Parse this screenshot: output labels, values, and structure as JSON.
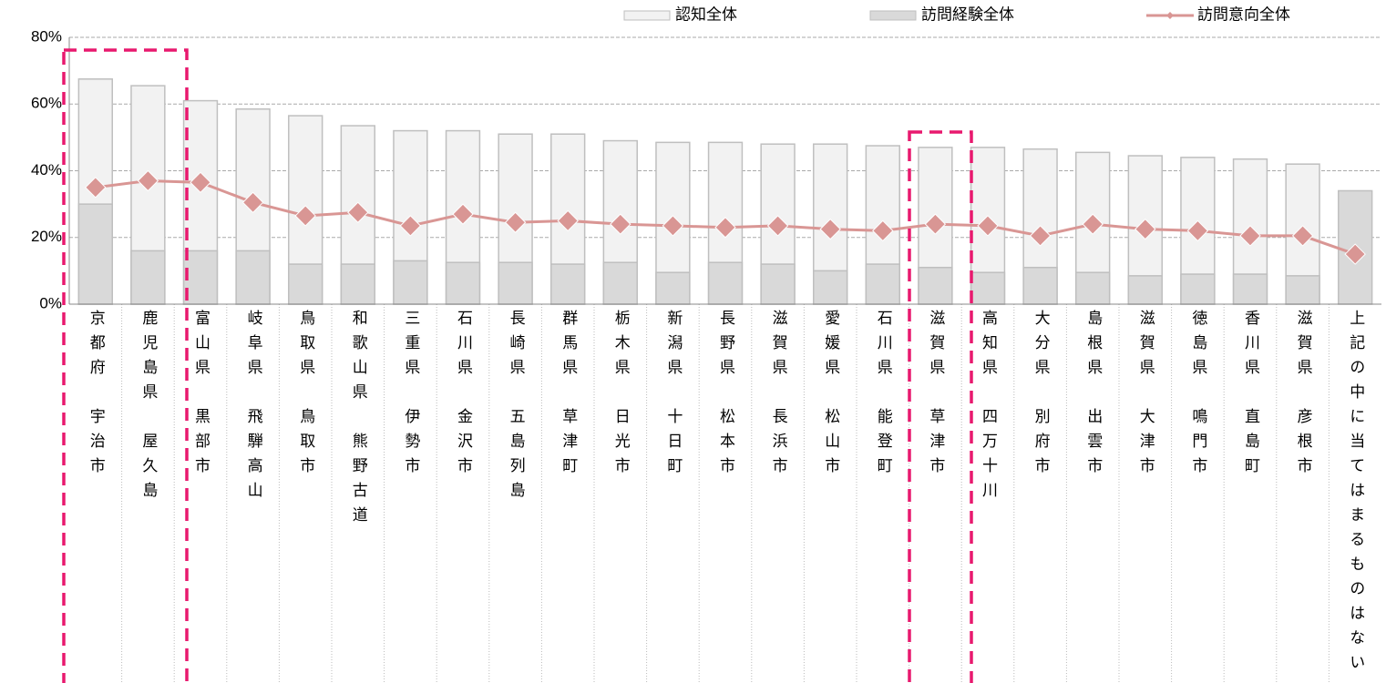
{
  "chart_data": {
    "type": "bar",
    "categories": [
      "京都府　宇治市",
      "鹿児島県　屋久島",
      "富山県　黒部市",
      "岐阜県　飛騨高山",
      "鳥取県　鳥取市",
      "和歌山県　熊野古道",
      "三重県　伊勢市",
      "石川県　金沢市",
      "長崎県　五島列島",
      "群馬県　草津町",
      "栃木県　日光市",
      "新潟県　十日町",
      "長野県　松本市",
      "滋賀県　長浜市",
      "愛媛県　松山市",
      "石川県　能登町",
      "滋賀県　草津市",
      "高知県　四万十川",
      "大分県　別府市",
      "島根県　出雲市",
      "滋賀県　大津市",
      "徳島県　鳴門市",
      "香川県　直島町",
      "滋賀県　彦根市",
      "上記の中に当てはまるものはない"
    ],
    "series": [
      {
        "name": "認知全体",
        "color": "#f2f2f2",
        "values": [
          67.5,
          65.5,
          61,
          58.5,
          56.5,
          53.5,
          52,
          52,
          51,
          51,
          49,
          48.5,
          48.5,
          48,
          48,
          47.5,
          47,
          47,
          46.5,
          45.5,
          44.5,
          44,
          43.5,
          42,
          null
        ]
      },
      {
        "name": "訪問経験全体",
        "color": "#d9d9d9",
        "values": [
          30,
          16,
          16,
          16,
          12,
          12,
          13,
          12.5,
          12.5,
          12,
          12.5,
          9.5,
          12.5,
          12,
          10,
          12,
          11,
          9.5,
          11,
          9.5,
          8.5,
          9,
          9,
          8.5,
          34
        ]
      },
      {
        "name": "訪問意向全体",
        "color": "#d99694",
        "type": "line",
        "values": [
          35,
          37,
          36.5,
          30.5,
          26.5,
          27.5,
          23.5,
          27,
          24.5,
          25,
          24,
          23.5,
          23,
          23.5,
          22.5,
          22,
          24,
          23.5,
          20.5,
          24,
          22.5,
          22,
          20.5,
          20.5,
          15
        ]
      }
    ],
    "ylim": [
      0,
      80
    ],
    "yticks": [
      {
        "value": 0,
        "label": "0%"
      },
      {
        "value": 20,
        "label": "20%"
      },
      {
        "value": 40,
        "label": "40%"
      },
      {
        "value": 60,
        "label": "60%"
      },
      {
        "value": 80,
        "label": "80%"
      }
    ],
    "grid": true,
    "legend": "top"
  }
}
